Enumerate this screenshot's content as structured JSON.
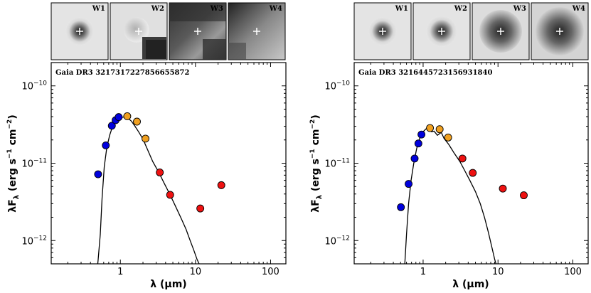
{
  "chart_data": [
    {
      "type": "scatter",
      "title": "Gaia DR3 3217317227856655872",
      "xlabel": "λ (μm)",
      "ylabel": "λF_λ (erg s⁻¹ cm⁻²)",
      "xscale": "log",
      "yscale": "log",
      "xlim": [
        0.12,
        160
      ],
      "ylim": [
        5e-13,
        2e-10
      ],
      "xticks": [
        {
          "v": 1,
          "label": "1"
        },
        {
          "v": 10,
          "label": "10"
        },
        {
          "v": 100,
          "label": "100"
        }
      ],
      "yticks": [
        {
          "v": 1e-12,
          "base": "10",
          "exp": "−12"
        },
        {
          "v": 1e-11,
          "base": "10",
          "exp": "−11"
        },
        {
          "v": 1e-10,
          "base": "10",
          "exp": "−10"
        }
      ],
      "thumbnails": [
        "W1",
        "W2",
        "W3",
        "W4"
      ],
      "series": [
        {
          "color": "#0000dd",
          "points": [
            [
              0.505,
              7.2e-12
            ],
            [
              0.64,
              1.7e-11
            ],
            [
              0.77,
              3.05e-11
            ],
            [
              0.865,
              3.6e-11
            ],
            [
              0.95,
              3.95e-11
            ]
          ]
        },
        {
          "color": "#f0a020",
          "points": [
            [
              1.235,
              4.05e-11
            ],
            [
              1.662,
              3.45e-11
            ],
            [
              2.159,
              2.08e-11
            ]
          ]
        },
        {
          "color": "#ee1111",
          "points": [
            [
              3.35,
              7.6e-12
            ],
            [
              4.6,
              3.9e-12
            ],
            [
              11.6,
              2.6e-12
            ],
            [
              22.1,
              5.2e-12
            ]
          ]
        }
      ],
      "model_line": [
        [
          0.5,
          5e-13
        ],
        [
          0.54,
          1.2e-12
        ],
        [
          0.57,
          3.5e-12
        ],
        [
          0.61,
          9e-12
        ],
        [
          0.66,
          1.6e-11
        ],
        [
          0.72,
          2.3e-11
        ],
        [
          0.78,
          2.9e-11
        ],
        [
          0.85,
          3.4e-11
        ],
        [
          0.92,
          3.75e-11
        ],
        [
          1.0,
          3.9e-11
        ],
        [
          1.12,
          3.95e-11
        ],
        [
          1.25,
          3.85e-11
        ],
        [
          1.4,
          3.5e-11
        ],
        [
          1.55,
          3.05e-11
        ],
        [
          1.75,
          2.55e-11
        ],
        [
          2.0,
          2.05e-11
        ],
        [
          2.3,
          1.5e-11
        ],
        [
          2.7,
          1.05e-11
        ],
        [
          3.2,
          7.8e-12
        ],
        [
          3.8,
          5.6e-12
        ],
        [
          4.6,
          3.9e-12
        ],
        [
          5.5,
          2.7e-12
        ],
        [
          6.5,
          1.9e-12
        ],
        [
          7.5,
          1.4e-12
        ],
        [
          8.5,
          1e-12
        ],
        [
          9.5,
          7.5e-13
        ],
        [
          10.5,
          5.7e-13
        ],
        [
          11.2,
          5e-13
        ]
      ]
    },
    {
      "type": "scatter",
      "title": "Gaia DR3 3216445723156931840",
      "xlabel": "λ (μm)",
      "ylabel": "λF_λ (erg s⁻¹ cm⁻²)",
      "xscale": "log",
      "yscale": "log",
      "xlim": [
        0.12,
        160
      ],
      "ylim": [
        5e-13,
        2e-10
      ],
      "xticks": [
        {
          "v": 1,
          "label": "1"
        },
        {
          "v": 10,
          "label": "10"
        },
        {
          "v": 100,
          "label": "100"
        }
      ],
      "yticks": [
        {
          "v": 1e-12,
          "base": "10",
          "exp": "−12"
        },
        {
          "v": 1e-11,
          "base": "10",
          "exp": "−11"
        },
        {
          "v": 1e-10,
          "base": "10",
          "exp": "−10"
        }
      ],
      "thumbnails": [
        "W1",
        "W2",
        "W3",
        "W4"
      ],
      "series": [
        {
          "color": "#0000dd",
          "points": [
            [
              0.505,
              2.7e-12
            ],
            [
              0.64,
              5.4e-12
            ],
            [
              0.77,
              1.15e-11
            ],
            [
              0.865,
              1.8e-11
            ],
            [
              0.95,
              2.35e-11
            ]
          ]
        },
        {
          "color": "#f0a020",
          "points": [
            [
              1.235,
              2.85e-11
            ],
            [
              1.662,
              2.75e-11
            ],
            [
              2.159,
              2.15e-11
            ]
          ]
        },
        {
          "color": "#ee1111",
          "points": [
            [
              3.35,
              1.15e-11
            ],
            [
              4.6,
              7.5e-12
            ],
            [
              11.6,
              4.7e-12
            ],
            [
              22.1,
              3.85e-12
            ]
          ]
        }
      ],
      "model_line": [
        [
          0.57,
          5e-13
        ],
        [
          0.6,
          1.2e-12
        ],
        [
          0.64,
          3e-12
        ],
        [
          0.69,
          6e-12
        ],
        [
          0.75,
          1e-11
        ],
        [
          0.82,
          1.55e-11
        ],
        [
          0.9,
          2.1e-11
        ],
        [
          1.0,
          2.55e-11
        ],
        [
          1.1,
          2.8e-11
        ],
        [
          1.2,
          2.75e-11
        ],
        [
          1.3,
          2.55e-11
        ],
        [
          1.4,
          2.6e-11
        ],
        [
          1.55,
          2.3e-11
        ],
        [
          1.75,
          2.5e-11
        ],
        [
          1.9,
          2.1e-11
        ],
        [
          2.2,
          1.75e-11
        ],
        [
          2.6,
          1.35e-11
        ],
        [
          3.1,
          1.05e-11
        ],
        [
          3.6,
          8e-12
        ],
        [
          4.2,
          6e-12
        ],
        [
          5.0,
          4.3e-12
        ],
        [
          5.8,
          3e-12
        ],
        [
          6.6,
          2e-12
        ],
        [
          7.4,
          1.3e-12
        ],
        [
          8.2,
          8.5e-13
        ],
        [
          9.0,
          5.8e-13
        ],
        [
          9.4,
          5e-13
        ]
      ]
    }
  ]
}
